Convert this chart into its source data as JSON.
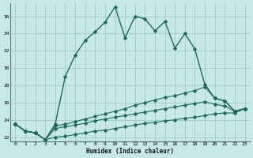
{
  "xlabel": "Humidex (Indice chaleur)",
  "ylabel": "",
  "xlim": [
    -0.5,
    23.5
  ],
  "ylim": [
    21.5,
    37.5
  ],
  "xticks": [
    0,
    1,
    2,
    3,
    4,
    5,
    6,
    7,
    8,
    9,
    10,
    11,
    12,
    13,
    14,
    15,
    16,
    17,
    18,
    19,
    20,
    21,
    22,
    23
  ],
  "yticks": [
    22,
    24,
    26,
    28,
    30,
    32,
    34,
    36
  ],
  "background_color": "#c8e8e8",
  "grid_color": "#a0cccc",
  "line_color": "#1a6b5a",
  "figsize": [
    3.2,
    2.0
  ],
  "dpi": 100,
  "lines": [
    {
      "x": [
        0,
        1,
        2,
        3,
        4,
        5,
        6,
        7,
        8,
        9,
        10,
        11,
        12,
        13,
        14,
        15,
        16,
        17,
        18,
        19,
        20,
        21,
        22,
        23
      ],
      "y": [
        23.5,
        22.7,
        22.5,
        21.7,
        23.5,
        29.0,
        31.5,
        33.2,
        34.2,
        35.3,
        37.1,
        33.5,
        36.0,
        35.7,
        34.3,
        35.4,
        32.3,
        34.0,
        32.2,
        28.1,
        26.5,
        26.2,
        25.0,
        25.3
      ],
      "marker": "D",
      "markersize": 2.5,
      "linewidth": 1.0
    },
    {
      "x": [
        0,
        1,
        2,
        3,
        4,
        5,
        6,
        7,
        8,
        9,
        10,
        11,
        12,
        13,
        14,
        15,
        16,
        17,
        18,
        19,
        20,
        21,
        22,
        23
      ],
      "y": [
        23.5,
        22.7,
        22.5,
        21.7,
        23.3,
        23.5,
        23.8,
        24.1,
        24.4,
        24.7,
        25.0,
        25.3,
        25.7,
        26.0,
        26.3,
        26.6,
        26.8,
        27.1,
        27.4,
        27.8,
        26.5,
        26.2,
        25.0,
        25.3
      ],
      "marker": "D",
      "markersize": 2.5,
      "linewidth": 0.8
    },
    {
      "x": [
        0,
        1,
        2,
        3,
        4,
        5,
        6,
        7,
        8,
        9,
        10,
        11,
        12,
        13,
        14,
        15,
        16,
        17,
        18,
        19,
        20,
        21,
        22,
        23
      ],
      "y": [
        23.5,
        22.7,
        22.5,
        21.7,
        23.0,
        23.2,
        23.4,
        23.6,
        23.9,
        24.1,
        24.3,
        24.5,
        24.7,
        24.9,
        25.1,
        25.3,
        25.5,
        25.7,
        25.9,
        26.1,
        25.8,
        25.6,
        25.0,
        25.3
      ],
      "marker": "D",
      "markersize": 2.5,
      "linewidth": 0.8
    },
    {
      "x": [
        0,
        1,
        2,
        3,
        4,
        5,
        6,
        7,
        8,
        9,
        10,
        11,
        12,
        13,
        14,
        15,
        16,
        17,
        18,
        19,
        20,
        21,
        22,
        23
      ],
      "y": [
        23.5,
        22.7,
        22.5,
        21.7,
        22.0,
        22.1,
        22.3,
        22.5,
        22.7,
        22.8,
        23.0,
        23.2,
        23.4,
        23.6,
        23.7,
        23.9,
        24.0,
        24.2,
        24.3,
        24.5,
        24.7,
        24.8,
        24.8,
        25.3
      ],
      "marker": "D",
      "markersize": 2.5,
      "linewidth": 0.8
    }
  ]
}
